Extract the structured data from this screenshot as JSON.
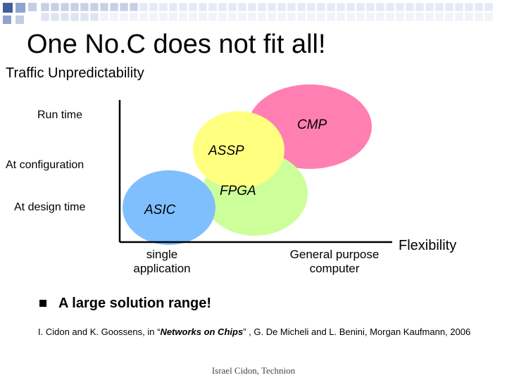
{
  "slide": {
    "title": "One No.C does not fit all!",
    "subtitle": "Traffic Unpredictability",
    "footer": "Israel Cidon, Technion"
  },
  "diagram": {
    "y_axis_labels": [
      "Run time",
      "At configuration",
      "At design time"
    ],
    "x_axis_labels": [
      "single application",
      "General purpose computer"
    ],
    "x_axis_title": "Flexibility",
    "regions": [
      {
        "label": "CMP",
        "color": "#ff7fb2"
      },
      {
        "label": "FPGA",
        "color": "#ccff99"
      },
      {
        "label": "ASSP",
        "color": "#ffff80"
      },
      {
        "label": "ASIC",
        "color": "#7fbfff"
      }
    ]
  },
  "bullet": {
    "text": "A large solution range!"
  },
  "citation": {
    "prefix": "I. Cidon and K. Goossens, in “",
    "book": "Networks on Chips",
    "suffix": "” , G. De Micheli and L. Benini, Morgan Kaufmann, 2006"
  },
  "decoration": {
    "square_colors": [
      "#3f5f9f",
      "#8fa3cf",
      "#c4cde6"
    ]
  }
}
